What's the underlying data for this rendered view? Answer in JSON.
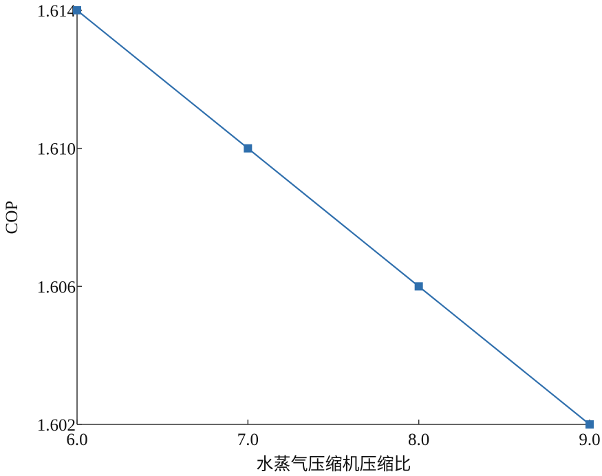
{
  "chart_data": {
    "type": "line",
    "title": "",
    "xlabel": "水蒸气压缩机压缩比",
    "ylabel": "COP",
    "x": [
      6.0,
      7.0,
      8.0,
      9.0
    ],
    "series": [
      {
        "values": [
          1.614,
          1.61,
          1.606,
          1.602
        ]
      }
    ],
    "xlim": [
      6.0,
      9.0
    ],
    "ylim": [
      1.602,
      1.614
    ],
    "xticks": [
      6.0,
      7.0,
      8.0,
      9.0
    ],
    "xtick_labels": [
      "6.0",
      "7.0",
      "8.0",
      "9.0"
    ],
    "yticks": [
      1.602,
      1.606,
      1.61,
      1.614
    ],
    "ytick_labels": [
      "1.602",
      "1.606",
      "1.610",
      "1.614"
    ],
    "grid": false,
    "legend": "none",
    "marker": "square",
    "color": "#2f6fad"
  }
}
